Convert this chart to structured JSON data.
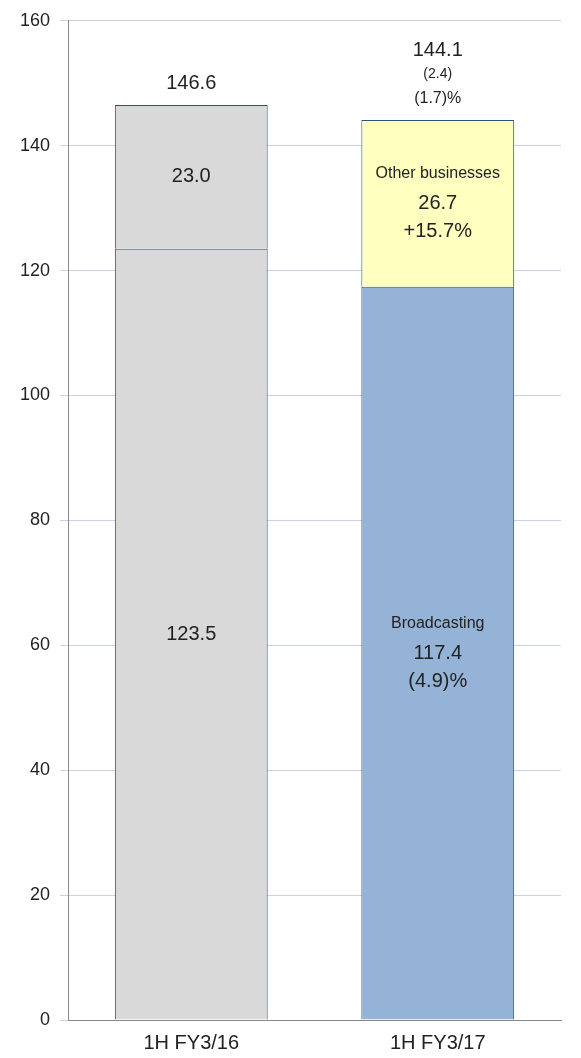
{
  "chart_data": {
    "type": "bar",
    "stacked": true,
    "categories": [
      "1H FY3/16",
      "1H FY3/17"
    ],
    "series": [
      {
        "name": "Broadcasting",
        "colors": [
          "#d9d9d9",
          "#95b3d7"
        ],
        "values": [
          123.5,
          117.4
        ],
        "value_labels": [
          "123.5",
          "117.4"
        ]
      },
      {
        "name": "Other businesses",
        "colors": [
          "#d9d9d9",
          "#ffffc0"
        ],
        "values": [
          23.0,
          26.7
        ],
        "value_labels": [
          "23.0",
          "26.7"
        ]
      }
    ],
    "totals": [
      "146.6",
      "144.1"
    ],
    "ylim": [
      0,
      160
    ],
    "yticks": [
      0,
      20,
      40,
      60,
      80,
      100,
      120,
      140,
      160
    ],
    "grid": "y",
    "legend": false,
    "annotations": [
      "(2.4)",
      "(1.7)%",
      "+15.7%",
      "(4.9)%"
    ]
  }
}
